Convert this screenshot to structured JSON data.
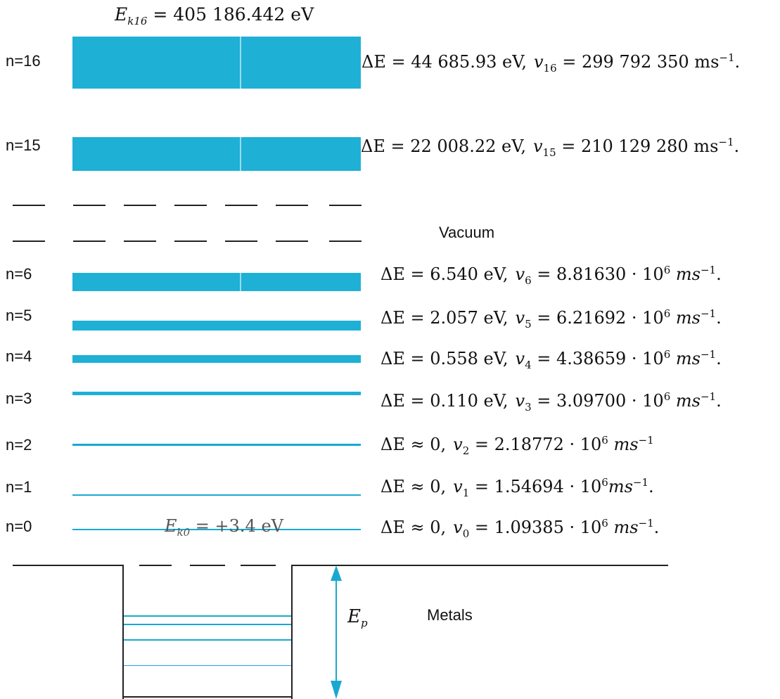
{
  "top": {
    "ek16_symbol": "E",
    "ek16_sub": "k16",
    "ek16_value": " = 405 186.442 eV"
  },
  "levels": {
    "n16": "n=16",
    "n15": "n=15",
    "n6": "n=6",
    "n5": "n=5",
    "n4": "n=4",
    "n3": "n=3",
    "n2": "n=2",
    "n1": "n=1",
    "n0": "n=0"
  },
  "equations": {
    "n16": {
      "de": "ΔE = 44 685.93 eV,",
      "v": "v",
      "sub": "16",
      "rest": " = 299 792 350 ms",
      "sup": "−1",
      "end": "."
    },
    "n15": {
      "de": "ΔE = 22 008.22 eV,",
      "v": "v",
      "sub": "15",
      "rest": " = 210 129 280 ms",
      "sup": "−1",
      "end": "."
    },
    "n6": {
      "de": "ΔE = 6.540 eV,",
      "v": "v",
      "sub": "6",
      "rest": " =  8.81630 · 10",
      "sup6": "6",
      "unit": " ms",
      "sup": "−1",
      "end": "."
    },
    "n5": {
      "de": "ΔE = 2.057 eV,",
      "v": "v",
      "sub": "5",
      "rest": " = 6.21692 · 10",
      "sup6": "6",
      "unit": " ms",
      "sup": "−1",
      "end": "."
    },
    "n4": {
      "de": "ΔE = 0.558 eV,",
      "v": "v",
      "sub": "4",
      "rest": " = 4.38659 · 10",
      "sup6": "6",
      "unit": " ms",
      "sup": "−1",
      "end": "."
    },
    "n3": {
      "de": "ΔE = 0.110 eV,",
      "v": "v",
      "sub": "3",
      "rest": " = 3.09700 · 10",
      "sup6": "6",
      "unit": " ms",
      "sup": "−1",
      "end": "."
    },
    "n2": {
      "de": "ΔE ≈ 0,",
      "v": "v",
      "sub": "2",
      "rest": " = 2.18772 · 10",
      "sup6": "6",
      "unit": " ms",
      "sup": "−1",
      "end": ""
    },
    "n1": {
      "de": "ΔE ≈ 0,",
      "v": "v",
      "sub": "1",
      "rest": " = 1.54694  · 10",
      "sup6": "6",
      "unit": "ms",
      "sup": "−1",
      "end": "."
    },
    "n0": {
      "de": "ΔE ≈ 0,",
      "v": "v",
      "sub": "0",
      "rest": " = 1.09385 · 10",
      "sup6": "6",
      "unit": " ms",
      "sup": "−1",
      "end": "."
    }
  },
  "ek0": {
    "symbol": "E",
    "sub": "k0",
    "value": " = +3.4 eV"
  },
  "labels": {
    "vacuum": "Vacuum",
    "metals": "Metals",
    "ep_symbol": "E",
    "ep_sub": "p"
  },
  "colors": {
    "band": "#1fb0d6",
    "line": "#18a9d2",
    "ink": "#111111"
  }
}
